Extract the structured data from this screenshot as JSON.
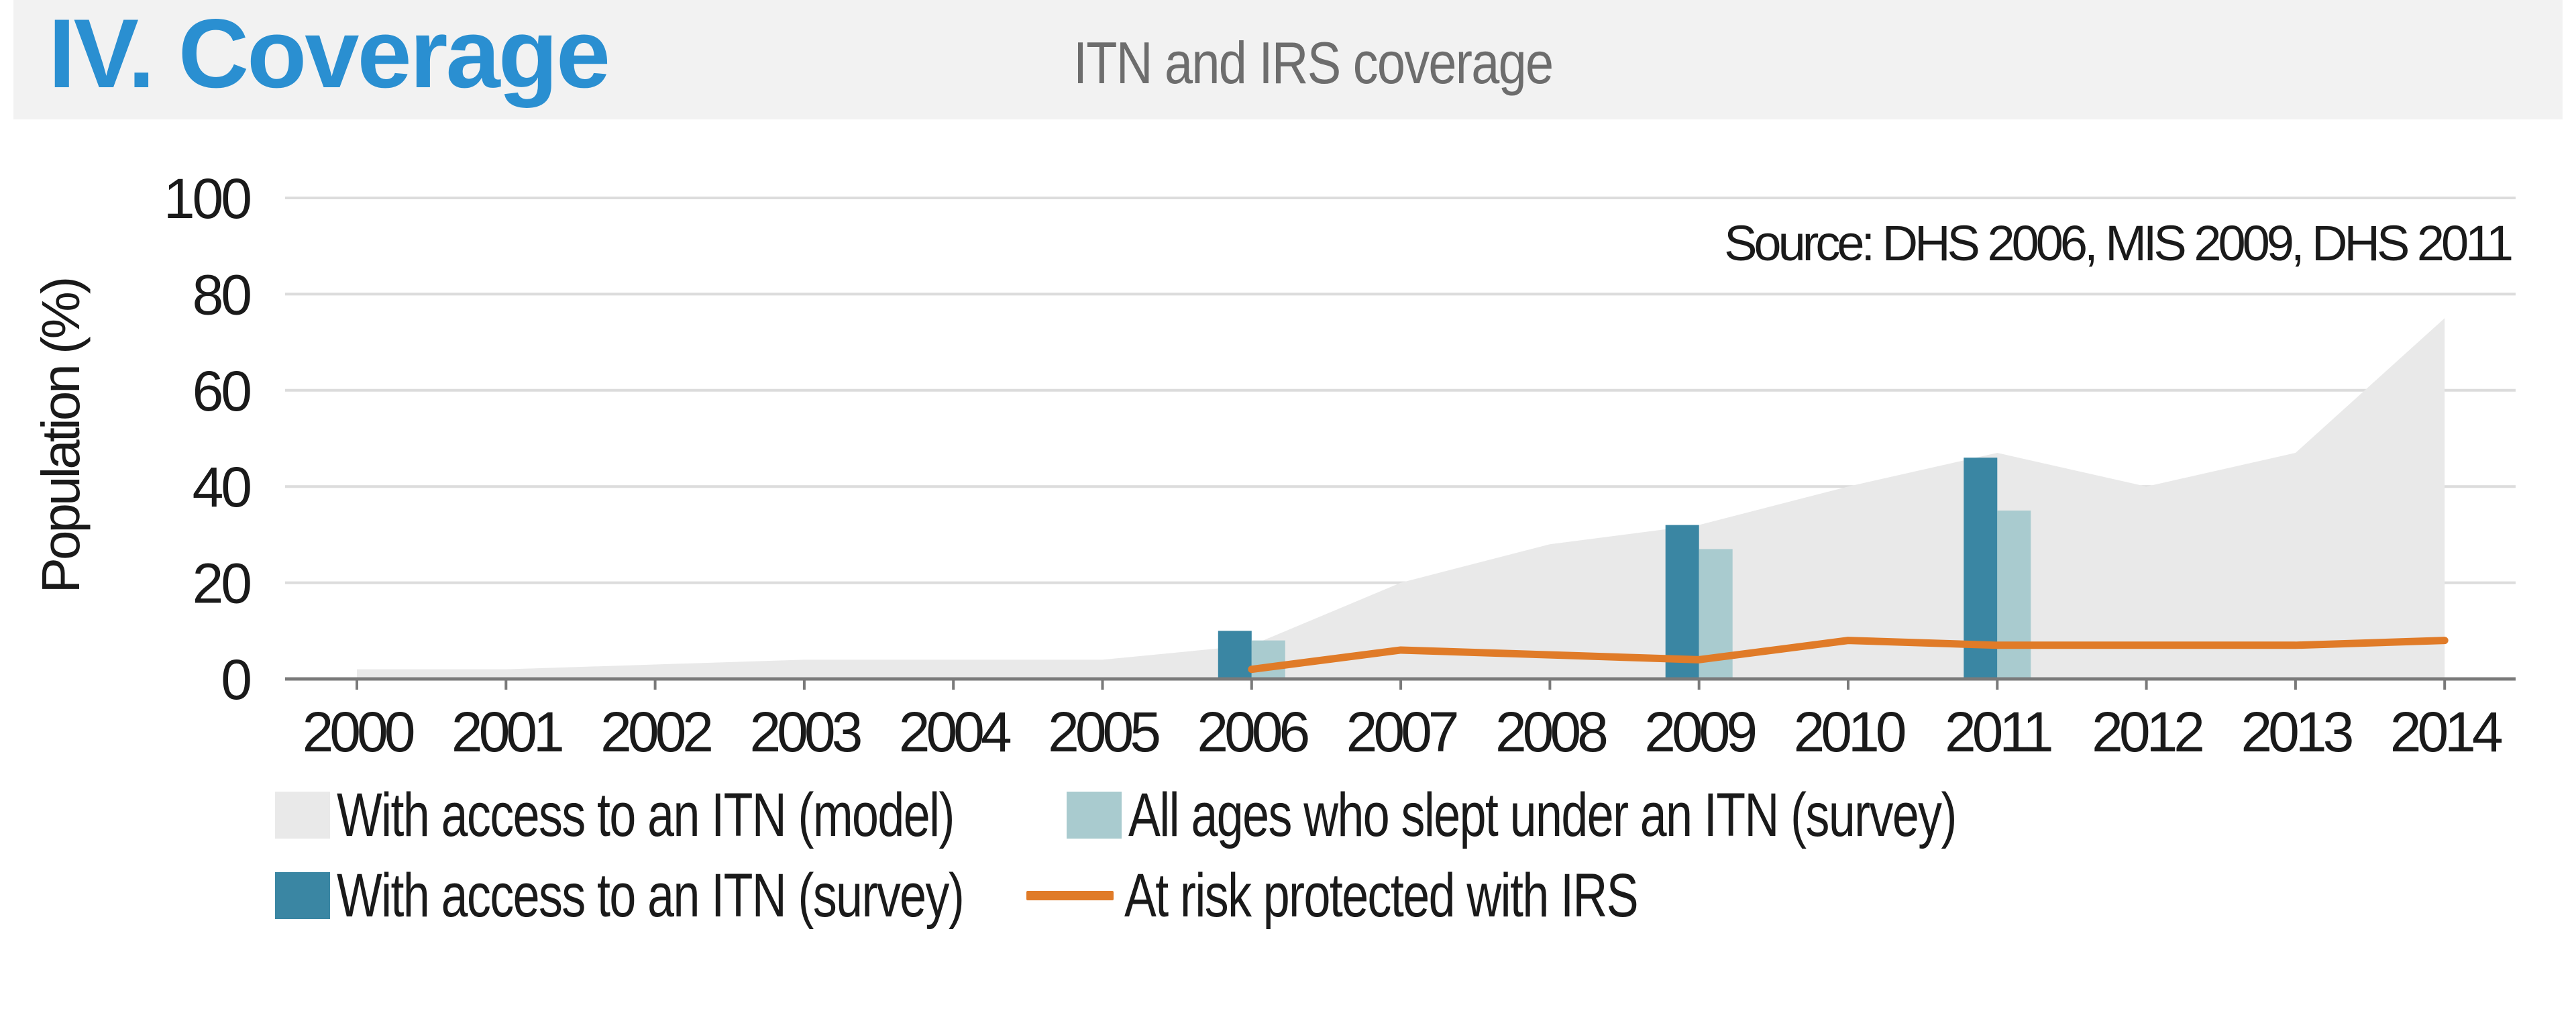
{
  "header": {
    "section_title": "IV. Coverage",
    "chart_title": "ITN and IRS coverage"
  },
  "colors": {
    "model_area": "#e9e9e9",
    "survey_access_bar": "#3a86a3",
    "survey_slept_bar": "#a9cbcf",
    "irs_line": "#e07b28",
    "gridline": "#dcdcdc",
    "axis": "#7a7a7a",
    "header_bg": "#f2f2f2",
    "section_title": "#2a8fd1",
    "chart_title": "#6d6d6d"
  },
  "chart_data": {
    "type": "bar",
    "title": "ITN and IRS coverage",
    "ylabel": "Population (%)",
    "xlabel": "",
    "ylim": [
      0,
      100
    ],
    "yticks": [
      0,
      20,
      40,
      60,
      80,
      100
    ],
    "categories": [
      "2000",
      "2001",
      "2002",
      "2003",
      "2004",
      "2005",
      "2006",
      "2007",
      "2008",
      "2009",
      "2010",
      "2011",
      "2012",
      "2013",
      "2014"
    ],
    "annotation": "Source: DHS 2006, MIS 2009, DHS 2011",
    "grid": true,
    "series": [
      {
        "name": "With access to an ITN (model)",
        "kind": "area",
        "values": [
          2,
          2,
          3,
          4,
          4,
          4,
          7,
          20,
          28,
          32,
          40,
          47,
          40,
          47,
          75
        ]
      },
      {
        "name": "With access to an ITN (survey)",
        "kind": "bar",
        "values": [
          null,
          null,
          null,
          null,
          null,
          null,
          10,
          null,
          null,
          32,
          null,
          46,
          null,
          null,
          null
        ]
      },
      {
        "name": "All ages who slept under an ITN (survey)",
        "kind": "bar",
        "values": [
          null,
          null,
          null,
          null,
          null,
          null,
          8,
          null,
          null,
          27,
          null,
          35,
          null,
          null,
          null
        ]
      },
      {
        "name": "At risk protected with IRS",
        "kind": "line",
        "values": [
          null,
          null,
          null,
          null,
          null,
          null,
          2,
          6,
          5,
          4,
          8,
          7,
          7,
          7,
          8
        ]
      }
    ]
  },
  "legend": {
    "items": [
      {
        "label": "With access to an ITN (model)"
      },
      {
        "label": "All ages who slept under an ITN (survey)"
      },
      {
        "label": "With access to an ITN (survey)"
      },
      {
        "label": "At risk protected with IRS"
      }
    ]
  }
}
